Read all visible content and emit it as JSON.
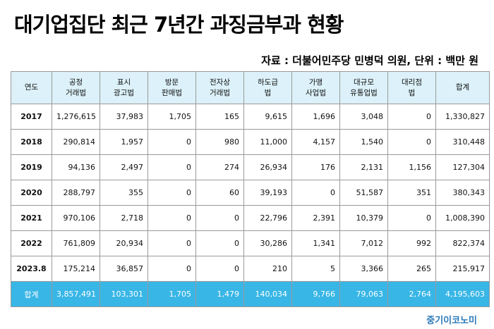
{
  "title": "대기업집단 최근 7년간 과징금부과 현황",
  "source": "자료 : 더불어민주당 민병덕 의원, 단위 : 백만 원",
  "headers": [
    [
      "연도"
    ],
    [
      "공정",
      "거래법"
    ],
    [
      "표시",
      "광고법"
    ],
    [
      "방문",
      "판매법"
    ],
    [
      "전자상",
      "거래법"
    ],
    [
      "하도급",
      "법"
    ],
    [
      "가맹",
      "사업법"
    ],
    [
      "대규모",
      "유통업법"
    ],
    [
      "대리점",
      "법"
    ],
    [
      "합계"
    ]
  ],
  "rows": [
    [
      "2017",
      "1,276,615",
      "37,983",
      "1,705",
      "165",
      "9,615",
      "1,696",
      "3,048",
      "0",
      "1,330,827"
    ],
    [
      "2018",
      "290,814",
      "1,957",
      "0",
      "980",
      "11,000",
      "4,157",
      "1,540",
      "0",
      "310,448"
    ],
    [
      "2019",
      "94,136",
      "2,497",
      "0",
      "274",
      "26,934",
      "176",
      "2,131",
      "1,156",
      "127,304"
    ],
    [
      "2020",
      "288,797",
      "355",
      "0",
      "60",
      "39,193",
      "0",
      "51,587",
      "351",
      "380,343"
    ],
    [
      "2021",
      "970,106",
      "2,718",
      "0",
      "0",
      "22,796",
      "2,391",
      "10,379",
      "0",
      "1,008,390"
    ],
    [
      "2022",
      "761,809",
      "20,934",
      "0",
      "0",
      "30,286",
      "1,341",
      "7,012",
      "992",
      "822,374"
    ],
    [
      "2023.8",
      "175,214",
      "36,857",
      "0",
      "0",
      "210",
      "5",
      "3,366",
      "265",
      "215,917"
    ]
  ],
  "total": [
    "합계",
    "3,857,491",
    "103,301",
    "1,705",
    "1,479",
    "140,034",
    "9,766",
    "79,063",
    "2,764",
    "4,195,603"
  ],
  "watermark": "중기이코노미",
  "colors": {
    "header_bg": "#dcf1f9",
    "total_bg": "#38b6e6",
    "watermark": "#2a78b8"
  }
}
